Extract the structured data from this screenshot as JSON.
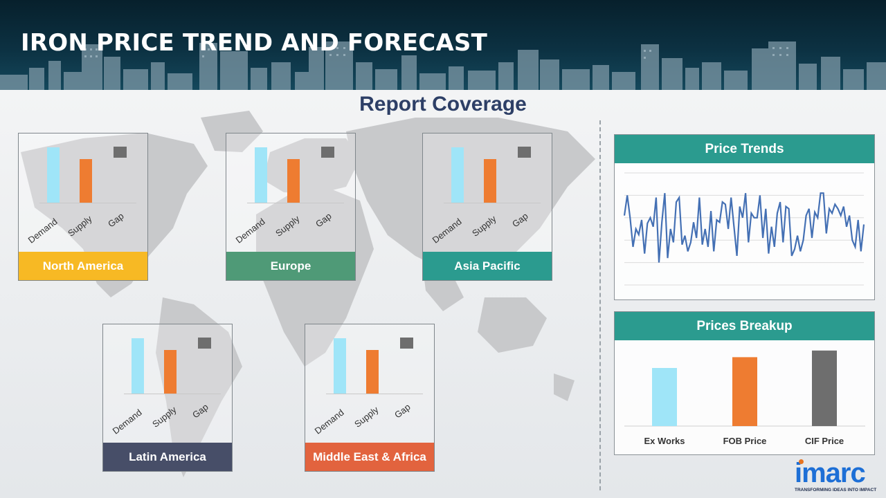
{
  "title": "IRON PRICE TREND AND FORECAST",
  "coverage_title": "Report Coverage",
  "colors": {
    "demand": "#9fe5f8",
    "supply": "#ee7c31",
    "gap": "#6e6e6e",
    "header_bg": "#0c3142",
    "teal": "#2b9b8f",
    "line": "#4470b4",
    "north_america": "#f7b924",
    "europe": "#4f9a77",
    "asia_pacific": "#2b9b8f",
    "latin_america": "#474e68",
    "middle_east_africa": "#e2633e",
    "fob_bar": "#ee7c31",
    "cif_bar": "#6e6e6e",
    "ex_works_bar": "#9fe5f8"
  },
  "regions": [
    {
      "name": "North America",
      "color": "#f7b924"
    },
    {
      "name": "Europe",
      "color": "#4f9a77"
    },
    {
      "name": "Asia Pacific",
      "color": "#2b9b8f"
    },
    {
      "name": "Latin America",
      "color": "#474e68"
    },
    {
      "name": "Middle East & Africa",
      "color": "#e2633e"
    }
  ],
  "price_trends_title": "Price Trends",
  "prices_breakup_title": "Prices Breakup",
  "logo": {
    "word": "imarc",
    "tagline": "TRANSFORMING IDEAS INTO IMPACT"
  },
  "chart_data": [
    {
      "type": "bar",
      "region": "North America",
      "categories": [
        "Demand",
        "Supply",
        "Gap"
      ],
      "values": [
        80,
        63,
        0
      ]
    },
    {
      "type": "bar",
      "region": "Europe",
      "categories": [
        "Demand",
        "Supply",
        "Gap"
      ],
      "values": [
        80,
        63,
        0
      ]
    },
    {
      "type": "bar",
      "region": "Asia Pacific",
      "categories": [
        "Demand",
        "Supply",
        "Gap"
      ],
      "values": [
        80,
        63,
        0
      ]
    },
    {
      "type": "bar",
      "region": "Latin America",
      "categories": [
        "Demand",
        "Supply",
        "Gap"
      ],
      "values": [
        80,
        63,
        0
      ]
    },
    {
      "type": "bar",
      "region": "Middle East & Africa",
      "categories": [
        "Demand",
        "Supply",
        "Gap"
      ],
      "values": [
        80,
        63,
        0
      ]
    },
    {
      "type": "line",
      "title": "Price Trends",
      "ylim": [
        0,
        100
      ],
      "grid": true,
      "values": [
        62,
        80,
        60,
        34,
        50,
        45,
        58,
        28,
        55,
        60,
        52,
        78,
        20,
        56,
        82,
        24,
        50,
        38,
        74,
        78,
        36,
        44,
        30,
        38,
        56,
        42,
        78,
        36,
        50,
        34,
        66,
        30,
        58,
        56,
        74,
        72,
        50,
        78,
        52,
        26,
        70,
        60,
        82,
        38,
        64,
        60,
        60,
        80,
        42,
        68,
        28,
        52,
        34,
        64,
        74,
        38,
        70,
        68,
        26,
        32,
        44,
        30,
        40,
        62,
        68,
        42,
        65,
        60,
        82,
        82,
        46,
        68,
        64,
        72,
        68,
        62,
        70,
        52,
        62,
        40,
        34,
        58,
        30,
        54
      ]
    },
    {
      "type": "bar",
      "title": "Prices Breakup",
      "categories": [
        "Ex Works",
        "FOB Price",
        "CIF Price"
      ],
      "values": [
        70,
        83,
        91
      ],
      "ylim": [
        0,
        100
      ]
    }
  ]
}
